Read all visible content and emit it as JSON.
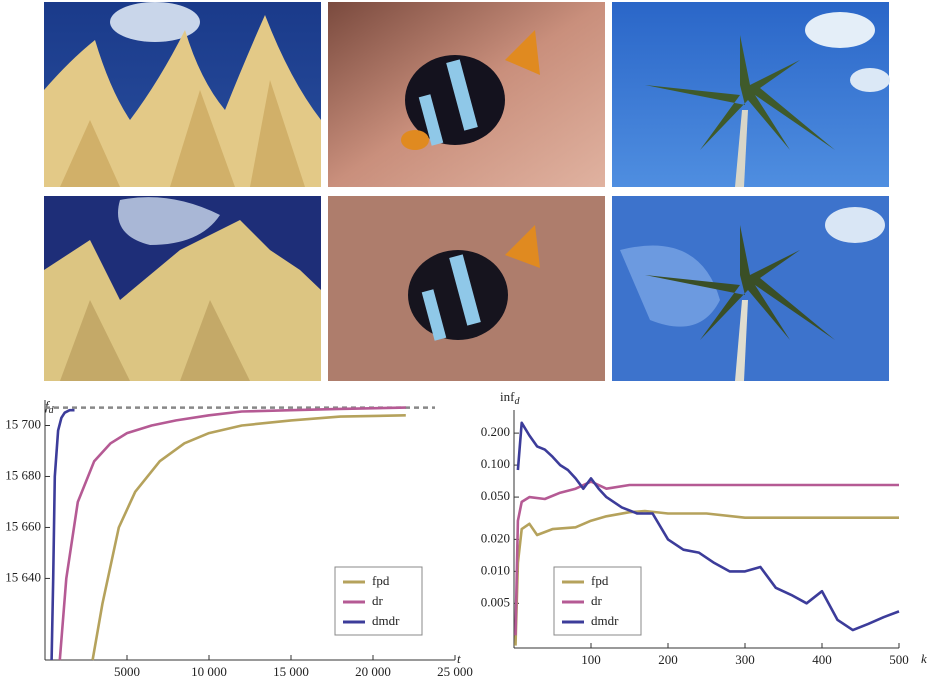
{
  "chart_data": [
    {
      "type": "line",
      "ylabel": {
        "text": "f",
        "subscript": "d"
      },
      "xlabel": "t",
      "xlim": [
        0,
        25000
      ],
      "ylim": [
        15608,
        15710
      ],
      "xticks": [
        5000,
        {
          "value": 10000,
          "label": "10 000"
        },
        {
          "value": 15000,
          "label": "15 000"
        },
        {
          "value": 20000,
          "label": "20 000"
        },
        {
          "value": 25000,
          "label": "25 000"
        }
      ],
      "yticks": [
        {
          "value": 15640,
          "label": "15 640"
        },
        {
          "value": 15660,
          "label": "15 660"
        },
        {
          "value": 15680,
          "label": "15 680"
        },
        {
          "value": 15700,
          "label": "15 700"
        }
      ],
      "hline": 15707,
      "log_y": false,
      "series": [
        {
          "name": "fpd",
          "color": "#b5a25c",
          "x": [
            2900,
            3500,
            4500,
            5500,
            7000,
            8500,
            10000,
            12000,
            15000,
            18000,
            22000
          ],
          "values": [
            15608,
            15630,
            15660,
            15674,
            15686,
            15693,
            15697,
            15700,
            15702,
            15703.5,
            15704
          ]
        },
        {
          "name": "dr",
          "color": "#b55a94",
          "x": [
            900,
            1300,
            2000,
            3000,
            4000,
            5000,
            6500,
            8000,
            10000,
            12000,
            15000,
            18000,
            22000
          ],
          "values": [
            15608,
            15640,
            15670,
            15686,
            15693,
            15697,
            15700,
            15702,
            15704,
            15705.5,
            15706,
            15706.5,
            15707
          ]
        },
        {
          "name": "dmdr",
          "color": "#3c3c9a",
          "x": [
            400,
            500,
            600,
            800,
            1000,
            1200,
            1500,
            1800
          ],
          "values": [
            15608,
            15640,
            15680,
            15698,
            15703,
            15705,
            15706,
            15706
          ]
        }
      ]
    },
    {
      "type": "line",
      "ylabel": {
        "text": "inf",
        "subscript": "d"
      },
      "xlabel": "k",
      "xlim": [
        0,
        500
      ],
      "ylim": [
        0.0019,
        0.33
      ],
      "log_y": true,
      "xticks": [
        100,
        200,
        300,
        400,
        500
      ],
      "yticks": [
        {
          "value": 0.005,
          "label": "0.005"
        },
        {
          "value": 0.01,
          "label": "0.010"
        },
        {
          "value": 0.02,
          "label": "0.020"
        },
        {
          "value": 0.05,
          "label": "0.050"
        },
        {
          "value": 0.1,
          "label": "0.100"
        },
        {
          "value": 0.2,
          "label": "0.200"
        }
      ],
      "series": [
        {
          "name": "fpd",
          "color": "#b5a25c",
          "x": [
            2,
            5,
            10,
            20,
            30,
            50,
            80,
            100,
            120,
            150,
            170,
            200,
            250,
            300,
            350,
            400,
            500
          ],
          "values": [
            0.002,
            0.012,
            0.025,
            0.028,
            0.022,
            0.025,
            0.026,
            0.03,
            0.033,
            0.036,
            0.037,
            0.035,
            0.035,
            0.032,
            0.032,
            0.032,
            0.032
          ]
        },
        {
          "name": "dr",
          "color": "#b55a94",
          "x": [
            2,
            5,
            10,
            20,
            40,
            60,
            80,
            100,
            120,
            150,
            200,
            300,
            400,
            500
          ],
          "values": [
            0.0025,
            0.03,
            0.045,
            0.05,
            0.048,
            0.055,
            0.06,
            0.07,
            0.06,
            0.065,
            0.065,
            0.065,
            0.065,
            0.065
          ]
        },
        {
          "name": "dmdr",
          "color": "#3c3c9a",
          "x": [
            5,
            10,
            20,
            30,
            40,
            50,
            60,
            70,
            80,
            90,
            100,
            110,
            120,
            140,
            160,
            180,
            200,
            220,
            240,
            260,
            280,
            300,
            320,
            340,
            360,
            380,
            400,
            420,
            440,
            460,
            480,
            500
          ],
          "values": [
            0.09,
            0.25,
            0.19,
            0.15,
            0.14,
            0.12,
            0.1,
            0.09,
            0.075,
            0.06,
            0.075,
            0.06,
            0.05,
            0.04,
            0.035,
            0.035,
            0.02,
            0.016,
            0.015,
            0.012,
            0.01,
            0.01,
            0.011,
            0.007,
            0.006,
            0.005,
            0.0065,
            0.0035,
            0.0028,
            0.0032,
            0.0037,
            0.0042
          ]
        }
      ]
    }
  ]
}
